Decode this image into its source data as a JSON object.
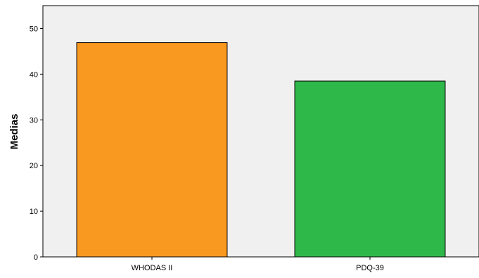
{
  "chart_data": {
    "type": "bar",
    "title": "",
    "xlabel": "",
    "ylabel": "Medias",
    "categories": [
      "WHODAS II",
      "PDQ-39"
    ],
    "values": [
      46.9,
      38.5
    ],
    "colors": [
      "#f9991f",
      "#2fb84a"
    ],
    "ylim": [
      0,
      55
    ],
    "yticks": [
      0,
      10,
      20,
      30,
      40,
      50
    ],
    "grid": false,
    "legend": "none",
    "plot_background": "#f0f0f0"
  }
}
